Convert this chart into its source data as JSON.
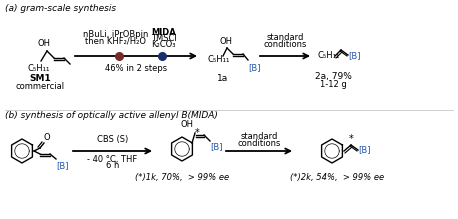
{
  "bg_color": "#ffffff",
  "title_a": "(a) gram-scale synthesis",
  "title_b": "(b) synthesis of optically active allenyl B(MIDA)",
  "B_color": "#2255aa",
  "dot1_color": "#7a2a2a",
  "dot2_color": "#1a2e6e",
  "step1_top": "nBuLi, iPrOBpin",
  "step1_bot": "then KHF₂/H₂O",
  "step2_top": "MIDA",
  "step2_mid": "TMSCl",
  "step2_bot": "K₂CO₃",
  "yield_a": "46% in 2 steps",
  "std_cond": "standard\nconditions",
  "compound_1a": "1a",
  "compound_2a": "2a, 79%",
  "compound_2a_b": "1-12 g",
  "sm1": "SM1",
  "commercial": "commercial",
  "C5H11": "C₅H₁₁",
  "cbs": "CBS (S)",
  "cbs_cond": "- 40 °C, THF\n6 h",
  "compound_1k": "(*)1k, 70%,  > 99% ee",
  "compound_2k": "(*)2k, 54%,  > 99% ee"
}
